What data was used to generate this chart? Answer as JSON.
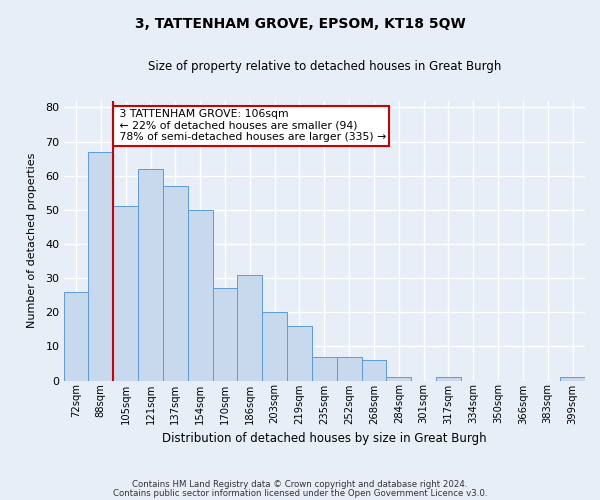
{
  "title": "3, TATTENHAM GROVE, EPSOM, KT18 5QW",
  "subtitle": "Size of property relative to detached houses in Great Burgh",
  "xlabel": "Distribution of detached houses by size in Great Burgh",
  "ylabel": "Number of detached properties",
  "bar_color": "#c8d9ed",
  "bar_edge_color": "#5b9bd5",
  "background_color": "#e8eef7",
  "fig_background_color": "#e8eef7",
  "grid_color": "#ffffff",
  "categories": [
    "72sqm",
    "88sqm",
    "105sqm",
    "121sqm",
    "137sqm",
    "154sqm",
    "170sqm",
    "186sqm",
    "203sqm",
    "219sqm",
    "235sqm",
    "252sqm",
    "268sqm",
    "284sqm",
    "301sqm",
    "317sqm",
    "334sqm",
    "350sqm",
    "366sqm",
    "383sqm",
    "399sqm"
  ],
  "values": [
    26,
    67,
    51,
    62,
    57,
    50,
    27,
    31,
    20,
    16,
    7,
    7,
    6,
    1,
    0,
    1,
    0,
    0,
    0,
    0,
    1
  ],
  "ylim": [
    0,
    82
  ],
  "yticks": [
    0,
    10,
    20,
    30,
    40,
    50,
    60,
    70,
    80
  ],
  "property_label": "3 TATTENHAM GROVE: 106sqm",
  "pct_smaller": 22,
  "n_smaller": 94,
  "pct_larger": 78,
  "n_larger": 335,
  "vline_index": 2,
  "annotation_box_color": "#ffffff",
  "annotation_box_edge_color": "#cc0000",
  "vline_color": "#cc0000",
  "footer_line1": "Contains HM Land Registry data © Crown copyright and database right 2024.",
  "footer_line2": "Contains public sector information licensed under the Open Government Licence v3.0."
}
